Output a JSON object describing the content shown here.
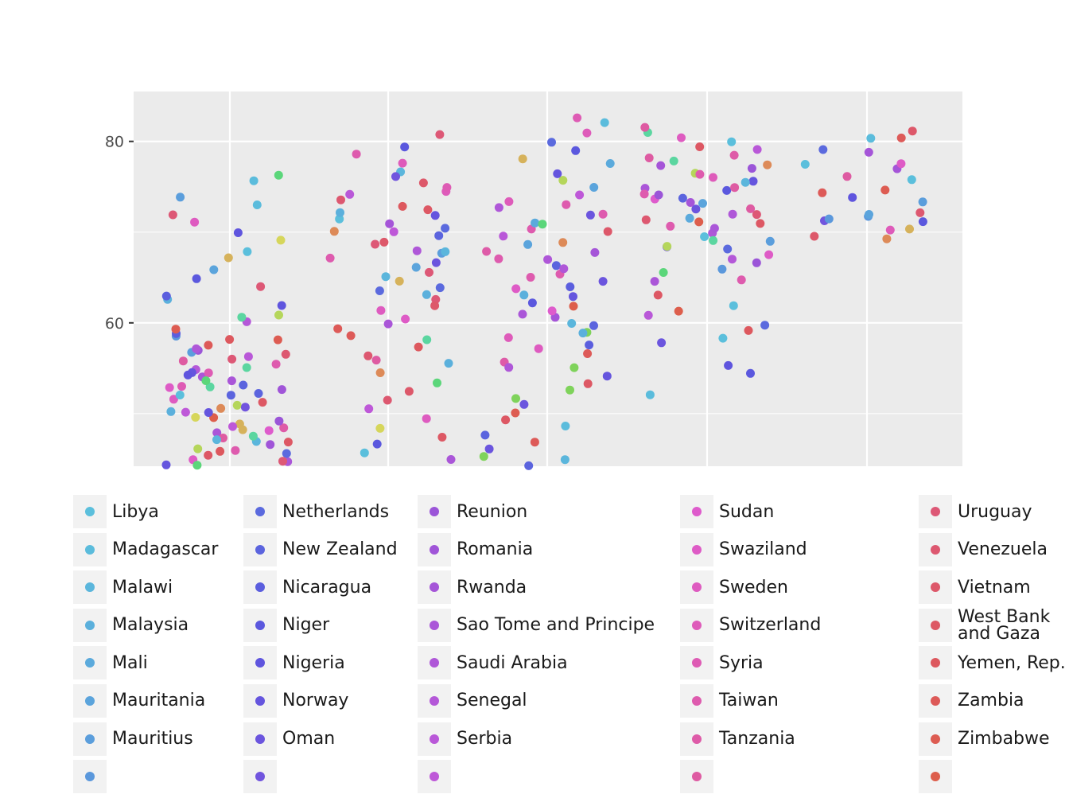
{
  "chart_data": {
    "type": "scatter",
    "title": "",
    "xlabel": "",
    "ylabel": "",
    "jitter": true,
    "ylim": [
      44.2,
      85.5
    ],
    "yticks": [
      {
        "value": 60,
        "label": "60"
      },
      {
        "value": 80,
        "label": "80"
      }
    ],
    "grid": true,
    "legend_position": "bottom",
    "groups": [
      {
        "values": [
          44.5,
          45,
          45.5,
          46,
          46.5,
          47,
          47.5,
          48,
          48.5,
          49,
          49.5,
          50,
          50.5,
          51,
          51.5,
          52,
          52.5,
          53,
          53.5,
          54,
          54.5,
          55,
          55.5,
          56,
          56.5,
          57,
          57.5,
          58,
          58.5,
          59,
          60,
          60.5,
          61,
          62,
          62.5,
          63,
          64,
          65,
          66,
          67,
          68,
          69,
          70,
          71,
          72,
          73,
          74,
          75.8,
          76.4,
          44.8,
          46.2,
          47.8,
          49.2,
          50.8,
          52.2,
          53.8,
          55.2,
          56.8,
          58.2,
          45.6,
          47.2,
          48.6,
          51.2,
          52.8,
          54.6,
          57.2,
          59.4,
          44.9,
          46.7,
          48.3,
          50.1,
          51.9,
          53.3,
          55.7,
          44.3,
          45.9,
          47.1,
          49.7,
          50.3,
          52.9,
          54.1,
          56.3
        ]
      },
      {
        "values": [
          44.8,
          45.5,
          46.5,
          47.5,
          48.5,
          49.5,
          50.5,
          51.5,
          52.5,
          53.5,
          54.5,
          55.5,
          56.5,
          57.5,
          58.5,
          59.5,
          60.5,
          61.5,
          62.5,
          63.5,
          64.5,
          65.5,
          66.5,
          67.5,
          68.5,
          69.5,
          70.5,
          71.5,
          72.5,
          73.5,
          74.5,
          75.5,
          76.5,
          77.5,
          78.5,
          79.5,
          80.6,
          56,
          58,
          60,
          62,
          64,
          66,
          68,
          70,
          72,
          74,
          76,
          65,
          67,
          69,
          71,
          73,
          75,
          63,
          68,
          70,
          72
        ]
      },
      {
        "values": [
          44.2,
          44.8,
          45.4,
          46.2,
          47,
          47.8,
          48.6,
          49.4,
          50.2,
          51,
          51.8,
          52.6,
          53.4,
          54.2,
          55,
          55.8,
          56.6,
          57.4,
          58.2,
          59,
          59.8,
          60.6,
          61.4,
          62.2,
          63,
          63.8,
          64.6,
          65.4,
          66.2,
          67,
          67.8,
          68.6,
          69.4,
          70.2,
          71,
          71.8,
          72.6,
          73.4,
          74.2,
          75,
          75.8,
          76.6,
          77.4,
          78.2,
          79,
          80,
          81,
          82,
          82.6,
          60,
          62,
          64,
          66,
          68,
          70,
          72,
          55,
          57,
          59,
          61,
          63,
          65,
          67,
          69,
          71,
          73
        ]
      },
      {
        "values": [
          52,
          54.3,
          55.2,
          57.9,
          58.4,
          59.3,
          59.6,
          61,
          61.3,
          62,
          63.1,
          64.5,
          64.8,
          65.7,
          66,
          66.5,
          67,
          67.5,
          68,
          68.5,
          69,
          69.5,
          70,
          70.5,
          71,
          71.5,
          72,
          72.5,
          73,
          73.5,
          74,
          74.5,
          75,
          75.5,
          76,
          76.5,
          77,
          77.5,
          78,
          78.5,
          79,
          79.5,
          80,
          80.5,
          81,
          81.7,
          69.2,
          70.8,
          71.6,
          72.4,
          73.2,
          74.8,
          75.6,
          76.4,
          77.2,
          78.1,
          68.6,
          70.3,
          71.9,
          73.7,
          74.1
        ]
      },
      {
        "values": [
          69.1,
          69.4,
          70.3,
          71,
          71.2,
          71.3,
          71.9,
          72,
          72.2,
          73.4,
          73.8,
          74.3,
          74.7,
          75.8,
          76.3,
          77.1,
          77.5,
          77.5,
          78.8,
          79.1,
          80.2,
          80.4,
          81.2,
          70.3
        ]
      }
    ]
  },
  "legend": {
    "columns": [
      {
        "items": [
          {
            "label": "Libya",
            "color": "#5bbfdc"
          },
          {
            "label": "Madagascar",
            "color": "#5bbcdc"
          },
          {
            "label": "Malawi",
            "color": "#5bb6dc"
          },
          {
            "label": "Malaysia",
            "color": "#5bb0dc"
          },
          {
            "label": "Mali",
            "color": "#5baadc"
          },
          {
            "label": "Mauritania",
            "color": "#5ba4dc"
          },
          {
            "label": "Mauritius",
            "color": "#5b9edc"
          },
          {
            "label": "",
            "color": "#5b98dc"
          }
        ]
      },
      {
        "items": [
          {
            "label": "Netherlands",
            "color": "#5b6ade"
          },
          {
            "label": "New Zealand",
            "color": "#5b64de"
          },
          {
            "label": "Nicaragua",
            "color": "#5b5ede"
          },
          {
            "label": "Niger",
            "color": "#5b58de"
          },
          {
            "label": "Nigeria",
            "color": "#5f55de"
          },
          {
            "label": "Norway",
            "color": "#6555de"
          },
          {
            "label": "Oman",
            "color": "#6b55de"
          },
          {
            "label": "",
            "color": "#7155de"
          }
        ]
      },
      {
        "items": [
          {
            "label": "Reunion",
            "color": "#9b55d8"
          },
          {
            "label": "Romania",
            "color": "#a055d8"
          },
          {
            "label": "Rwanda",
            "color": "#a555d8"
          },
          {
            "label": "Sao Tome and Principe",
            "color": "#aa56d8"
          },
          {
            "label": "Saudi Arabia",
            "color": "#af57d8"
          },
          {
            "label": "Senegal",
            "color": "#b458d8"
          },
          {
            "label": "Serbia",
            "color": "#b958d8"
          },
          {
            "label": "",
            "color": "#be58d8"
          }
        ]
      },
      {
        "items": [
          {
            "label": "Sudan",
            "color": "#de5bcc"
          },
          {
            "label": "Swaziland",
            "color": "#de5bc6"
          },
          {
            "label": "Sweden",
            "color": "#de5bc0"
          },
          {
            "label": "Switzerland",
            "color": "#de5bba"
          },
          {
            "label": "Syria",
            "color": "#de5bb4"
          },
          {
            "label": "Taiwan",
            "color": "#de5bae"
          },
          {
            "label": "Tanzania",
            "color": "#de5ba8"
          },
          {
            "label": "",
            "color": "#de5ba2"
          }
        ]
      },
      {
        "items": [
          {
            "label": "Uruguay",
            "color": "#dd5876"
          },
          {
            "label": "Venezuela",
            "color": "#dd5870"
          },
          {
            "label": "Vietnam",
            "color": "#dd586a"
          },
          {
            "label": "West Bank and Gaza",
            "color": "#dd5864"
          },
          {
            "label": "Yemen, Rep.",
            "color": "#dd585e"
          },
          {
            "label": "Zambia",
            "color": "#dd5a58"
          },
          {
            "label": "Zimbabwe",
            "color": "#dd5c52"
          },
          {
            "label": "",
            "color": "#dd5e4c"
          }
        ]
      }
    ]
  },
  "colors": {
    "panel_background": "#ebebeb",
    "grid": "#ffffff",
    "key_background": "#f2f2f2"
  }
}
